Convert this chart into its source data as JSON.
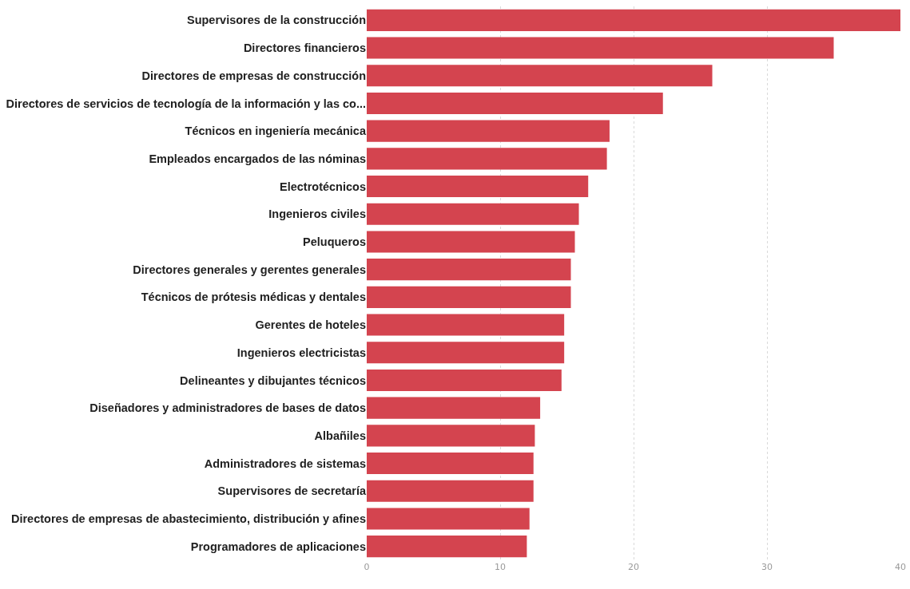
{
  "chart_data": {
    "type": "bar",
    "orientation": "horizontal",
    "categories": [
      "Supervisores de la construcción",
      "Directores financieros",
      "Directores de empresas de construcción",
      "Directores de servicios de tecnología de la información y las co...",
      "Técnicos en ingeniería mecánica",
      "Empleados encargados de las nóminas",
      "Electrotécnicos",
      "Ingenieros civiles",
      "Peluqueros",
      "Directores generales y gerentes generales",
      "Técnicos de prótesis médicas y dentales",
      "Gerentes de hoteles",
      "Ingenieros electricistas",
      "Delineantes y dibujantes técnicos",
      "Diseñadores y administradores de bases de datos",
      "Albañiles",
      "Administradores de sistemas",
      "Supervisores de secretaría",
      "Directores de empresas de abastecimiento, distribución y afines",
      "Programadores de aplicaciones"
    ],
    "values": [
      40,
      35,
      25.9,
      22.2,
      18.2,
      18,
      16.6,
      15.9,
      15.6,
      15.3,
      15.3,
      14.8,
      14.8,
      14.6,
      13,
      12.6,
      12.5,
      12.5,
      12.2,
      12
    ],
    "color": "#d4444f",
    "xlim": [
      0,
      40
    ],
    "xticks": [
      0,
      10,
      20,
      30,
      40
    ],
    "grid": "x"
  }
}
